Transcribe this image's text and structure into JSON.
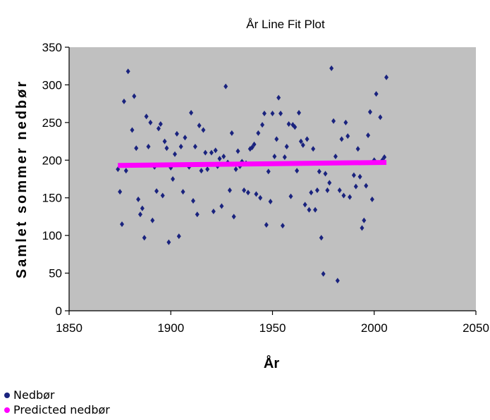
{
  "chart_data": {
    "type": "scatter",
    "title": "År Line Fit  Plot",
    "xlabel": "År",
    "ylabel": "Samlet sommer nedbør",
    "xlim": [
      1850,
      2050
    ],
    "ylim": [
      0,
      350
    ],
    "x_ticks": [
      1850,
      1900,
      1950,
      2000,
      2050
    ],
    "y_ticks": [
      0,
      50,
      100,
      150,
      200,
      250,
      300,
      350
    ],
    "grid": false,
    "plot_background": "#c0c0c0",
    "legend_position": "bottom-left",
    "series": [
      {
        "name": "Nedbør",
        "color": "#1a237e",
        "points": [
          [
            1874,
            188
          ],
          [
            1875,
            158
          ],
          [
            1876,
            115
          ],
          [
            1877,
            278
          ],
          [
            1878,
            186
          ],
          [
            1879,
            318
          ],
          [
            1881,
            240
          ],
          [
            1882,
            285
          ],
          [
            1883,
            216
          ],
          [
            1884,
            148
          ],
          [
            1885,
            128
          ],
          [
            1886,
            136
          ],
          [
            1887,
            97
          ],
          [
            1888,
            258
          ],
          [
            1889,
            218
          ],
          [
            1890,
            250
          ],
          [
            1891,
            120
          ],
          [
            1892,
            191
          ],
          [
            1893,
            159
          ],
          [
            1894,
            242
          ],
          [
            1895,
            248
          ],
          [
            1896,
            153
          ],
          [
            1897,
            225
          ],
          [
            1898,
            216
          ],
          [
            1899,
            91
          ],
          [
            1900,
            190
          ],
          [
            1901,
            175
          ],
          [
            1902,
            208
          ],
          [
            1903,
            235
          ],
          [
            1904,
            99
          ],
          [
            1905,
            218
          ],
          [
            1906,
            158
          ],
          [
            1907,
            230
          ],
          [
            1909,
            191
          ],
          [
            1910,
            263
          ],
          [
            1911,
            146
          ],
          [
            1912,
            218
          ],
          [
            1913,
            128
          ],
          [
            1914,
            246
          ],
          [
            1915,
            186
          ],
          [
            1916,
            240
          ],
          [
            1917,
            210
          ],
          [
            1918,
            188
          ],
          [
            1920,
            210
          ],
          [
            1921,
            132
          ],
          [
            1922,
            213
          ],
          [
            1923,
            192
          ],
          [
            1924,
            202
          ],
          [
            1925,
            139
          ],
          [
            1926,
            205
          ],
          [
            1927,
            298
          ],
          [
            1928,
            197
          ],
          [
            1929,
            160
          ],
          [
            1930,
            236
          ],
          [
            1931,
            125
          ],
          [
            1932,
            188
          ],
          [
            1933,
            212
          ],
          [
            1934,
            192
          ],
          [
            1935,
            198
          ],
          [
            1936,
            160
          ],
          [
            1937,
            196
          ],
          [
            1938,
            157
          ],
          [
            1939,
            215
          ],
          [
            1940,
            217
          ],
          [
            1941,
            221
          ],
          [
            1942,
            155
          ],
          [
            1943,
            236
          ],
          [
            1944,
            150
          ],
          [
            1945,
            247
          ],
          [
            1946,
            262
          ],
          [
            1947,
            114
          ],
          [
            1948,
            185
          ],
          [
            1949,
            145
          ],
          [
            1950,
            262
          ],
          [
            1951,
            205
          ],
          [
            1952,
            228
          ],
          [
            1953,
            283
          ],
          [
            1954,
            262
          ],
          [
            1955,
            113
          ],
          [
            1956,
            204
          ],
          [
            1957,
            218
          ],
          [
            1958,
            248
          ],
          [
            1959,
            152
          ],
          [
            1960,
            247
          ],
          [
            1961,
            244
          ],
          [
            1962,
            186
          ],
          [
            1963,
            263
          ],
          [
            1964,
            225
          ],
          [
            1965,
            220
          ],
          [
            1966,
            141
          ],
          [
            1967,
            228
          ],
          [
            1968,
            134
          ],
          [
            1969,
            157
          ],
          [
            1970,
            215
          ],
          [
            1971,
            134
          ],
          [
            1972,
            160
          ],
          [
            1973,
            185
          ],
          [
            1974,
            97
          ],
          [
            1975,
            49
          ],
          [
            1976,
            182
          ],
          [
            1977,
            160
          ],
          [
            1978,
            170
          ],
          [
            1979,
            322
          ],
          [
            1980,
            252
          ],
          [
            1981,
            205
          ],
          [
            1982,
            40
          ],
          [
            1983,
            160
          ],
          [
            1984,
            228
          ],
          [
            1985,
            153
          ],
          [
            1986,
            250
          ],
          [
            1987,
            232
          ],
          [
            1988,
            151
          ],
          [
            1990,
            180
          ],
          [
            1991,
            165
          ],
          [
            1992,
            215
          ],
          [
            1993,
            178
          ],
          [
            1994,
            110
          ],
          [
            1995,
            120
          ],
          [
            1996,
            166
          ],
          [
            1997,
            233
          ],
          [
            1998,
            264
          ],
          [
            1999,
            148
          ],
          [
            2000,
            200
          ],
          [
            2001,
            288
          ],
          [
            2003,
            257
          ],
          [
            2004,
            200
          ],
          [
            2005,
            204
          ],
          [
            2006,
            310
          ]
        ]
      },
      {
        "name": "Predicted nedbør",
        "color": "#ff00ff",
        "line": [
          [
            1874,
            193
          ],
          [
            2006,
            197
          ]
        ]
      }
    ]
  }
}
